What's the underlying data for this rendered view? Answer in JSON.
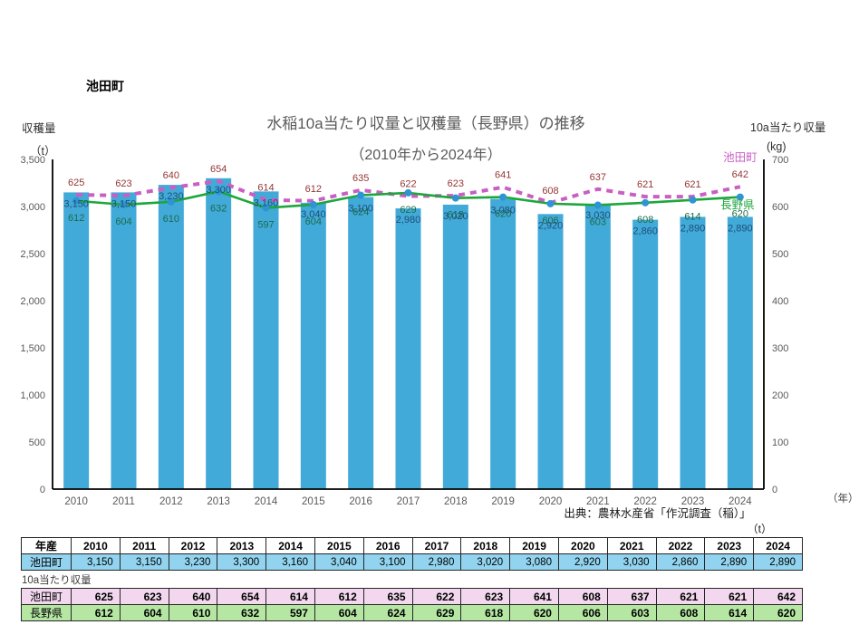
{
  "page": {
    "heading": "池田町",
    "source_note": "出典：農林水産省「作況調査（稲）」"
  },
  "chart_data": {
    "type": "combo-bar-line",
    "title": "水稲10a当たり収量と収穫量（長野県）の推移",
    "subtitle": "（2010年から2024年）",
    "categories": [
      "2010",
      "2011",
      "2012",
      "2013",
      "2014",
      "2015",
      "2016",
      "2017",
      "2018",
      "2019",
      "2020",
      "2021",
      "2022",
      "2023",
      "2024"
    ],
    "x_unit": "（年）",
    "left_axis": {
      "label": "収穫量",
      "unit": "（t）",
      "range": [
        0,
        3500
      ],
      "tick_step": 500
    },
    "right_axis": {
      "label": "10a当たり収量",
      "unit": "(kg)",
      "range": [
        0,
        700
      ],
      "tick_step": 100
    },
    "grid": false,
    "legend_position": "right-edge-inline",
    "series": [
      {
        "name": "池田町",
        "kind": "bar",
        "axis": "left",
        "unit": "t",
        "values": [
          3150,
          3150,
          3230,
          3300,
          3160,
          3040,
          3100,
          2980,
          3020,
          3080,
          2920,
          3030,
          2860,
          2890,
          2890
        ]
      },
      {
        "name": "池田町",
        "kind": "line-dashed",
        "axis": "right",
        "unit": "kg",
        "values": [
          625,
          623,
          640,
          654,
          614,
          612,
          635,
          622,
          623,
          641,
          608,
          637,
          621,
          621,
          642
        ]
      },
      {
        "name": "長野県",
        "kind": "line-markers",
        "axis": "right",
        "unit": "kg",
        "values": [
          612,
          604,
          610,
          632,
          597,
          604,
          624,
          629,
          618,
          620,
          606,
          603,
          608,
          614,
          620
        ]
      }
    ]
  },
  "tables": {
    "unit_label": "（t）",
    "year_header_label": "年産",
    "between_label": "10a当たり収量",
    "harvest_row_label": "池田町",
    "yield_row_labels": [
      "池田町",
      "長野県"
    ]
  },
  "colors": {
    "bar": "#41AAD8",
    "bar_label": "#1F4E79",
    "line_ikedacho": "#C95FC3",
    "line_ikedacho_label": "#943634",
    "line_nagano": "#1EA63C",
    "line_nagano_label": "#1D6B49",
    "marker": "#2F94D3",
    "axis_line": "#000000",
    "tick_text": "#595959",
    "table_harvest_row_bg": "#92D4EF",
    "table_yield_ikedacho_bg": "#F2D7EE",
    "table_yield_nagano_bg": "#B5E7A3",
    "table_border": "#262626"
  }
}
